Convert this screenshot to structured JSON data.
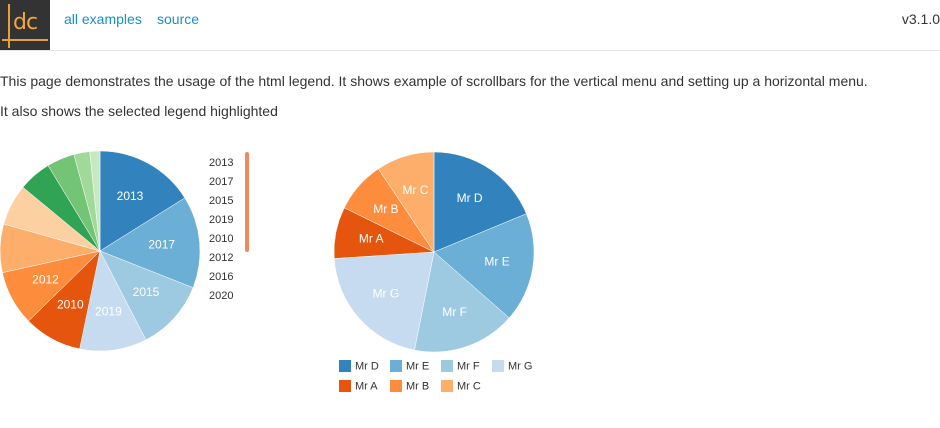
{
  "header": {
    "logo_text": "dc",
    "nav": [
      {
        "label": "all examples"
      },
      {
        "label": "source"
      }
    ],
    "version": "v3.1.0"
  },
  "intro": {
    "line1": "This page demonstrates the usage of the html legend. It shows example of scrollbars for the vertical menu and setting up a horizontal menu.",
    "line2": "It also shows the selected legend highlighted"
  },
  "chart_data": [
    {
      "type": "pie",
      "title": "",
      "categories": [
        "2013",
        "2017",
        "2015",
        "2019",
        "2010",
        "2012",
        "2016",
        "2020",
        "",
        "",
        "",
        ""
      ],
      "values": [
        27.6,
        25.5,
        19.6,
        18.6,
        16.1,
        15.2,
        13.4,
        11.4,
        9.1,
        7.7,
        4.4,
        2.8
      ],
      "colors": [
        "#3182bd",
        "#6baed6",
        "#9ecae1",
        "#c6dbef",
        "#e6550d",
        "#fd8d3c",
        "#fdae6b",
        "#fdd0a2",
        "#31a354",
        "#74c476",
        "#a1d99b",
        "#c7e9c0"
      ],
      "slice_labels": [
        "2013",
        "2017",
        "2015",
        "2019",
        "2010",
        "2012",
        "",
        "",
        "",
        "",
        "",
        ""
      ],
      "legend": {
        "placement": "right",
        "orientation": "vertical",
        "scrollbar": true,
        "items": [
          "2013",
          "2017",
          "2015",
          "2019",
          "2010",
          "2012",
          "2016",
          "2020"
        ]
      }
    },
    {
      "type": "pie",
      "title": "",
      "categories": [
        "Mr D",
        "Mr E",
        "Mr F",
        "Mr G",
        "Mr A",
        "Mr B",
        "Mr C"
      ],
      "values": [
        18,
        17,
        16,
        20,
        8,
        8,
        9
      ],
      "colors": [
        "#3182bd",
        "#6baed6",
        "#9ecae1",
        "#c6dbef",
        "#e6550d",
        "#fd8d3c",
        "#fdae6b"
      ],
      "slice_labels": [
        "Mr D",
        "Mr E",
        "Mr F",
        "Mr G",
        "Mr A",
        "Mr B",
        "Mr C"
      ],
      "legend": {
        "placement": "bottom",
        "orientation": "horizontal",
        "items": [
          "Mr D",
          "Mr E",
          "Mr F",
          "Mr G",
          "Mr A",
          "Mr B",
          "Mr C"
        ]
      }
    }
  ],
  "colors": {
    "link": "#1a8fc8",
    "scrollbar_thumb": "#f08b5e",
    "text": "#333333"
  }
}
